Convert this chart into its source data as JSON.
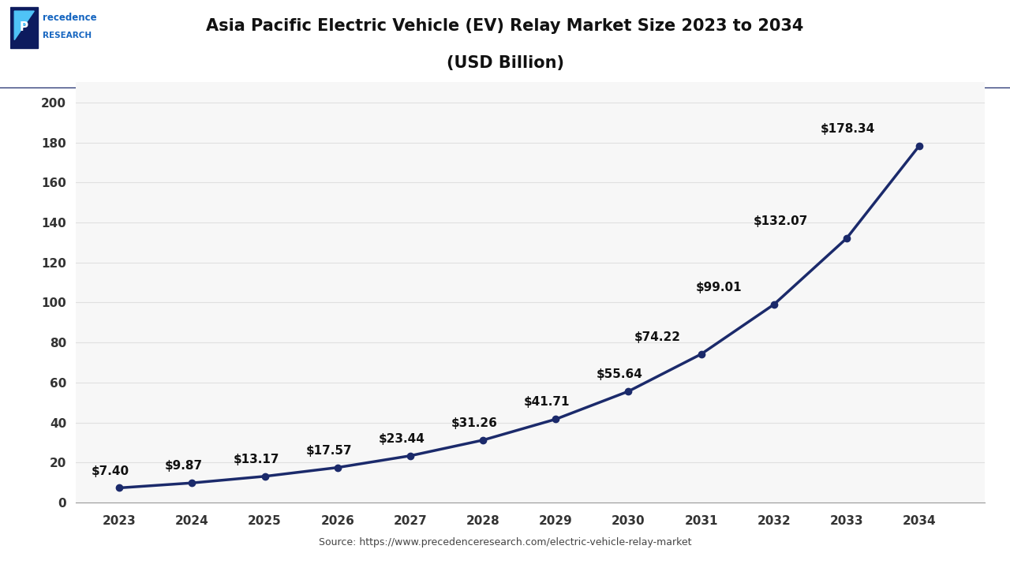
{
  "title_line1": "Asia Pacific Electric Vehicle (EV) Relay Market Size 2023 to 2034",
  "title_line2": "(USD Billion)",
  "source": "Source: https://www.precedenceresearch.com/electric-vehicle-relay-market",
  "years": [
    2023,
    2024,
    2025,
    2026,
    2027,
    2028,
    2029,
    2030,
    2031,
    2032,
    2033,
    2034
  ],
  "values": [
    7.4,
    9.87,
    13.17,
    17.57,
    23.44,
    31.26,
    41.71,
    55.64,
    74.22,
    99.01,
    132.07,
    178.34
  ],
  "labels": [
    "$7.40",
    "$9.87",
    "$13.17",
    "$17.57",
    "$23.44",
    "$31.26",
    "$41.71",
    "$55.64",
    "$74.22",
    "$99.01",
    "$132.07",
    "$178.34"
  ],
  "label_offsets_x": [
    -8,
    -8,
    -8,
    -8,
    -8,
    -8,
    -8,
    -8,
    -40,
    -50,
    -60,
    -65
  ],
  "label_offsets_y": [
    10,
    10,
    10,
    10,
    10,
    10,
    10,
    10,
    10,
    10,
    10,
    10
  ],
  "label_ha": [
    "center",
    "center",
    "center",
    "center",
    "center",
    "center",
    "center",
    "center",
    "left",
    "left",
    "left",
    "left"
  ],
  "line_color": "#1b2a6b",
  "marker_color": "#1b2a6b",
  "background_color": "#ffffff",
  "plot_bg_color": "#f7f7f7",
  "grid_color": "#e0e0e0",
  "header_line_color": "#1b2a6b",
  "ylim": [
    0,
    210
  ],
  "yticks": [
    0,
    20,
    40,
    60,
    80,
    100,
    120,
    140,
    160,
    180,
    200
  ],
  "title_fontsize": 15,
  "label_fontsize": 11,
  "tick_fontsize": 11,
  "source_fontsize": 9,
  "line_width": 2.5,
  "marker_size": 6,
  "logo_text_color": "#1b2a6b",
  "logo_blue": "#1565C0",
  "logo_dark": "#0d1b5e"
}
